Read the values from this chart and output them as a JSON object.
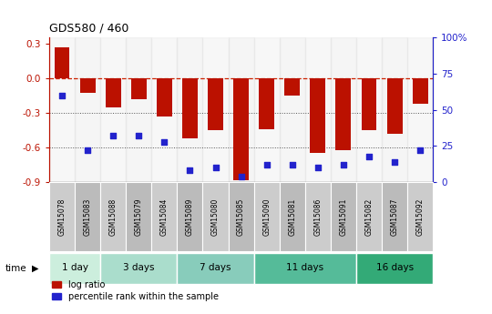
{
  "title": "GDS580 / 460",
  "samples": [
    "GSM15078",
    "GSM15083",
    "GSM15088",
    "GSM15079",
    "GSM15084",
    "GSM15089",
    "GSM15080",
    "GSM15085",
    "GSM15090",
    "GSM15081",
    "GSM15086",
    "GSM15091",
    "GSM15082",
    "GSM15087",
    "GSM15092"
  ],
  "log_ratio": [
    0.27,
    -0.13,
    -0.25,
    -0.18,
    -0.33,
    -0.52,
    -0.45,
    -0.88,
    -0.44,
    -0.15,
    -0.65,
    -0.62,
    -0.45,
    -0.48,
    -0.22
  ],
  "percentile": [
    60,
    22,
    32,
    32,
    28,
    8,
    10,
    4,
    12,
    12,
    10,
    12,
    18,
    14,
    22
  ],
  "groups": [
    {
      "label": "1 day",
      "indices": [
        0,
        1
      ],
      "color": "#cceedd"
    },
    {
      "label": "3 days",
      "indices": [
        2,
        3,
        4
      ],
      "color": "#aaddcc"
    },
    {
      "label": "7 days",
      "indices": [
        5,
        6,
        7
      ],
      "color": "#88ccbb"
    },
    {
      "label": "11 days",
      "indices": [
        8,
        9,
        10,
        11
      ],
      "color": "#55bb99"
    },
    {
      "label": "16 days",
      "indices": [
        12,
        13,
        14
      ],
      "color": "#33aa77"
    }
  ],
  "bar_color": "#bb1100",
  "dot_color": "#2222cc",
  "ref_line_color": "#cc2200",
  "dotted_line_color": "#555555",
  "sample_box_odd": "#cccccc",
  "sample_box_even": "#bbbbbb",
  "ylim": [
    -0.9,
    0.35
  ],
  "y2lim": [
    0,
    100
  ],
  "yticks": [
    0.3,
    0.0,
    -0.3,
    -0.6,
    -0.9
  ],
  "y2ticks": [
    100,
    75,
    50,
    25,
    0
  ],
  "y2ticklabels": [
    "100%",
    "75",
    "50",
    "25",
    "0"
  ],
  "figsize": [
    5.4,
    3.45
  ],
  "dpi": 100,
  "legend_items": [
    "log ratio",
    "percentile rank within the sample"
  ]
}
